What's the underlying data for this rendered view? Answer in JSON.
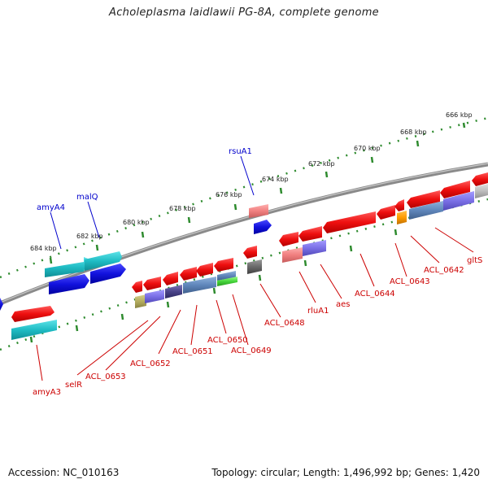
{
  "title": "Acholeplasma laidlawii PG-8A, complete genome",
  "footer": {
    "accession": "Accession: NC_010163",
    "summary": "Topology: circular; Length: 1,496,992 bp; Genes: 1,420"
  },
  "scale_labels": [
    "666 kbp",
    "668 kbp",
    "670 kbp",
    "672 kbp",
    "674 kbp",
    "676 kbp",
    "678 kbp",
    "680 kbp",
    "682 kbp",
    "684 kbp"
  ],
  "gene_labels_forward": [
    "amyA4",
    "malQ",
    "rsuA1"
  ],
  "gene_labels_reverse": [
    "amyA3",
    "selR",
    "ACL_0653",
    "ACL_0652",
    "ACL_0651",
    "ACL_0650",
    "ACL_0649",
    "ACL_0648",
    "rluA1",
    "aes",
    "ACL_0644",
    "ACL_0643",
    "ACL_0642",
    "gltS"
  ],
  "colors": {
    "backbone": "#808080",
    "tick": "#2e8b2e",
    "forward_label": "#0000cc",
    "reverse_label": "#cc0000",
    "cds_red": "#ee1111",
    "cds_cyan": "#20c0c8",
    "cds_blue": "#1010dd"
  }
}
